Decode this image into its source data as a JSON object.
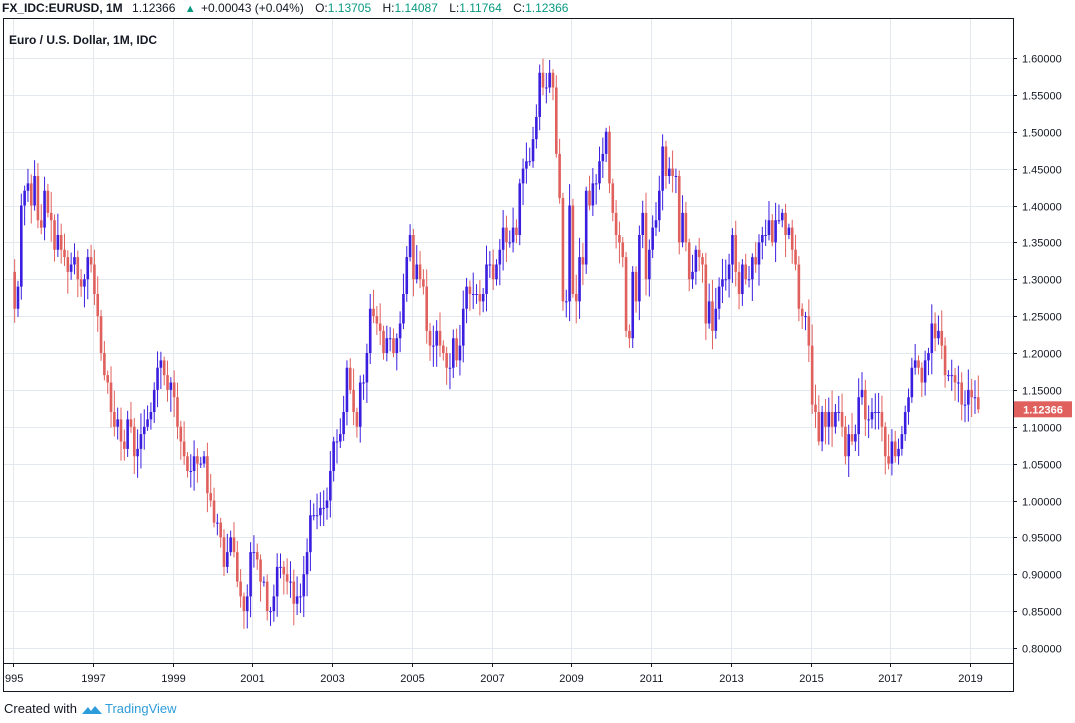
{
  "header": {
    "symbol": "FX_IDC:EURUSD, 1M",
    "price": "1.12366",
    "change": "+0.00043 (+0.04%)",
    "o_label": "O:",
    "o_value": "1.13705",
    "h_label": "H:",
    "h_value": "1.14087",
    "l_label": "L:",
    "l_value": "1.11764",
    "c_label": "C:",
    "c_value": "1.12366"
  },
  "footer": {
    "created_with": "Created with",
    "brand": "TradingView"
  },
  "colors": {
    "up": "#3a1ee0",
    "down": "#e0605d",
    "grid": "#e4e8ef",
    "axis_border": "#131722",
    "last_price_bg": "#e0605d",
    "up_text": "#089981"
  },
  "chart_data": {
    "type": "candlestick",
    "title": "Euro / U.S. Dollar, 1M, IDC",
    "interval": "1M",
    "y_range": [
      0.78,
      1.62
    ],
    "y_ticks": [
      "1.60000",
      "1.55000",
      "1.50000",
      "1.45000",
      "1.40000",
      "1.35000",
      "1.30000",
      "1.25000",
      "1.20000",
      "1.15000",
      "1.10000",
      "1.05000",
      "1.00000",
      "0.95000",
      "0.90000",
      "0.85000",
      "0.80000"
    ],
    "x_ticks": [
      "995",
      "1997",
      "1999",
      "2001",
      "2003",
      "2005",
      "2007",
      "2009",
      "2011",
      "2013",
      "2015",
      "2017",
      "2019"
    ],
    "last_price": "1.12366",
    "grid": true,
    "closes_by_year": {
      "1995": [
        1.26,
        1.29,
        1.4,
        1.42,
        1.43,
        1.4,
        1.44,
        1.38,
        1.37,
        1.42,
        1.39,
        1.38
      ],
      "1996": [
        1.34,
        1.36,
        1.34,
        1.33,
        1.31,
        1.32,
        1.33,
        1.3,
        1.29,
        1.3,
        1.33,
        1.32
      ],
      "1997": [
        1.28,
        1.25,
        1.2,
        1.17,
        1.16,
        1.12,
        1.1,
        1.11,
        1.08,
        1.07,
        1.11,
        1.1
      ],
      "1998": [
        1.06,
        1.07,
        1.09,
        1.1,
        1.11,
        1.12,
        1.15,
        1.18,
        1.19,
        1.17,
        1.15,
        1.16
      ],
      "1999": [
        1.14,
        1.1,
        1.08,
        1.06,
        1.04,
        1.04,
        1.06,
        1.05,
        1.05,
        1.06,
        1.01,
        1.0
      ],
      "2000": [
        0.97,
        0.97,
        0.95,
        0.91,
        0.93,
        0.95,
        0.93,
        0.89,
        0.87,
        0.85,
        0.87,
        0.93
      ],
      "2001": [
        0.93,
        0.92,
        0.89,
        0.89,
        0.85,
        0.85,
        0.87,
        0.91,
        0.91,
        0.9,
        0.89,
        0.89
      ],
      "2002": [
        0.86,
        0.87,
        0.87,
        0.9,
        0.93,
        0.98,
        0.98,
        0.98,
        0.99,
        0.99,
        1.0,
        1.04
      ],
      "2003": [
        1.08,
        1.08,
        1.09,
        1.12,
        1.18,
        1.15,
        1.12,
        1.1,
        1.16,
        1.16,
        1.2,
        1.26
      ],
      "2004": [
        1.25,
        1.24,
        1.23,
        1.2,
        1.22,
        1.22,
        1.2,
        1.22,
        1.24,
        1.28,
        1.33,
        1.36
      ],
      "2005": [
        1.3,
        1.32,
        1.3,
        1.29,
        1.23,
        1.21,
        1.21,
        1.23,
        1.21,
        1.2,
        1.18,
        1.18
      ],
      "2006": [
        1.22,
        1.19,
        1.21,
        1.26,
        1.29,
        1.28,
        1.28,
        1.28,
        1.27,
        1.28,
        1.32,
        1.32
      ],
      "2007": [
        1.3,
        1.32,
        1.34,
        1.37,
        1.35,
        1.35,
        1.37,
        1.36,
        1.43,
        1.45,
        1.46,
        1.46
      ],
      "2008": [
        1.49,
        1.52,
        1.58,
        1.56,
        1.56,
        1.58,
        1.56,
        1.47,
        1.41,
        1.27,
        1.27,
        1.4
      ],
      "2009": [
        1.28,
        1.27,
        1.33,
        1.32,
        1.42,
        1.4,
        1.43,
        1.43,
        1.46,
        1.47,
        1.5,
        1.43
      ],
      "2010": [
        1.39,
        1.36,
        1.35,
        1.33,
        1.23,
        1.22,
        1.31,
        1.27,
        1.36,
        1.39,
        1.3,
        1.34
      ],
      "2011": [
        1.37,
        1.38,
        1.42,
        1.48,
        1.44,
        1.45,
        1.44,
        1.44,
        1.35,
        1.39,
        1.35,
        1.3
      ],
      "2012": [
        1.31,
        1.34,
        1.33,
        1.32,
        1.24,
        1.27,
        1.23,
        1.26,
        1.29,
        1.3,
        1.3,
        1.32
      ],
      "2013": [
        1.36,
        1.31,
        1.28,
        1.32,
        1.3,
        1.3,
        1.33,
        1.32,
        1.35,
        1.36,
        1.36,
        1.38
      ],
      "2014": [
        1.35,
        1.38,
        1.38,
        1.39,
        1.36,
        1.37,
        1.34,
        1.32,
        1.26,
        1.25,
        1.25,
        1.21
      ],
      "2015": [
        1.13,
        1.12,
        1.08,
        1.12,
        1.1,
        1.12,
        1.1,
        1.12,
        1.12,
        1.1,
        1.06,
        1.09
      ],
      "2016": [
        1.08,
        1.09,
        1.14,
        1.15,
        1.11,
        1.11,
        1.12,
        1.12,
        1.12,
        1.1,
        1.06,
        1.05
      ],
      "2017": [
        1.08,
        1.06,
        1.07,
        1.09,
        1.12,
        1.14,
        1.18,
        1.19,
        1.18,
        1.16,
        1.19,
        1.2
      ],
      "2018": [
        1.24,
        1.22,
        1.23,
        1.21,
        1.17,
        1.17,
        1.17,
        1.16,
        1.16,
        1.13,
        1.13,
        1.15
      ],
      "2019": [
        1.14,
        1.14,
        1.12366
      ]
    },
    "start_open": 1.31
  }
}
